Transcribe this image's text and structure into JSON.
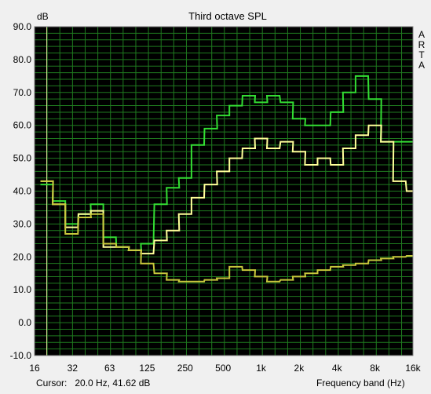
{
  "header": {
    "unit": "dB",
    "title": "Third octave SPL"
  },
  "brand_letters": [
    "A",
    "R",
    "T",
    "A"
  ],
  "status": {
    "cursor_label": "Cursor:",
    "cursor_value": "20.0 Hz, 41.62 dB",
    "xlabel": "Frequency band (Hz)"
  },
  "colors": {
    "plot_bg": "#000000",
    "grid": "#1f7a1f",
    "cursor": "#e8e8a0",
    "series_green": "#33dd33",
    "series_yellow": "#ffff99",
    "series_olive": "#c8c83c"
  },
  "chart_data": {
    "type": "line",
    "title": "Third octave SPL",
    "ylabel": "dB",
    "xlabel": "Frequency band (Hz)",
    "x_scale": "log",
    "xlim": [
      16,
      16000
    ],
    "ylim": [
      -10,
      90
    ],
    "grid": true,
    "x_tick_labels": [
      "16",
      "32",
      "63",
      "125",
      "250",
      "500",
      "1k",
      "2k",
      "4k",
      "8k",
      "16k"
    ],
    "y_tick_labels": [
      "90.0",
      "80.0",
      "70.0",
      "60.0",
      "50.0",
      "40.0",
      "30.0",
      "20.0",
      "10.0",
      "0.0",
      "-10.0"
    ],
    "cursor_x": 20,
    "bands": [
      20,
      25,
      31.5,
      40,
      50,
      63,
      80,
      100,
      125,
      160,
      200,
      250,
      315,
      400,
      500,
      630,
      800,
      1000,
      1250,
      1600,
      2000,
      2500,
      3150,
      4000,
      5000,
      6300,
      8000,
      10000,
      12500,
      16000
    ],
    "series": [
      {
        "color": "#33dd33",
        "values": [
          42,
          37,
          30,
          33,
          36,
          26,
          23,
          22,
          24,
          36,
          41,
          44,
          54,
          59,
          63,
          66,
          69,
          67,
          69,
          67,
          62,
          60,
          60,
          64,
          70,
          75,
          68,
          55,
          55,
          55
        ]
      },
      {
        "color": "#ffff99",
        "values": [
          43,
          36,
          29,
          33,
          34,
          23,
          23,
          22,
          21,
          25,
          28,
          33,
          38,
          42,
          46,
          50,
          53,
          56,
          53,
          55,
          52,
          48,
          50,
          48,
          53,
          57,
          60,
          55,
          43,
          40
        ]
      },
      {
        "color": "#c8c83c",
        "values": [
          43,
          36,
          27,
          32,
          33,
          24,
          23,
          22,
          18,
          15,
          13,
          12.5,
          12.5,
          13,
          13.5,
          17,
          16,
          14,
          12.5,
          13,
          14,
          15,
          16,
          17,
          17.5,
          18,
          19,
          19.5,
          20,
          20.3
        ]
      }
    ]
  }
}
